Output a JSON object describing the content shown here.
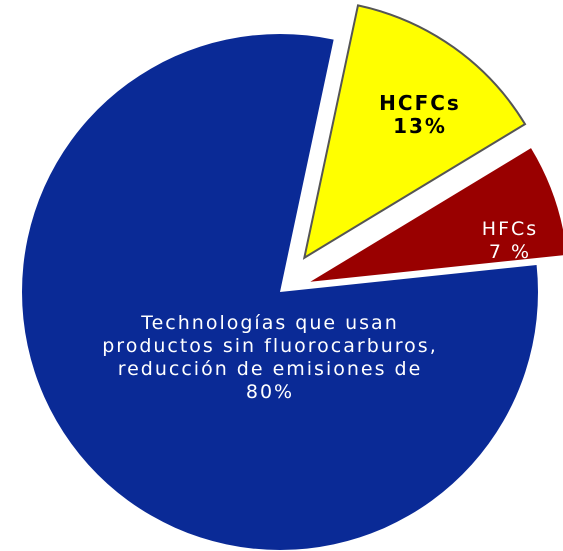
{
  "chart_data": {
    "type": "pie",
    "categories": [
      "HCFCs",
      "HFCs",
      "Technologías que usan productos sin fluorocarburos, reducción de emisiones de"
    ],
    "values": [
      13,
      7,
      80
    ],
    "value_labels": [
      "13%",
      "7 %",
      "80%"
    ],
    "colors": [
      "#ffff00",
      "#990000",
      "#0a2a96"
    ]
  }
}
